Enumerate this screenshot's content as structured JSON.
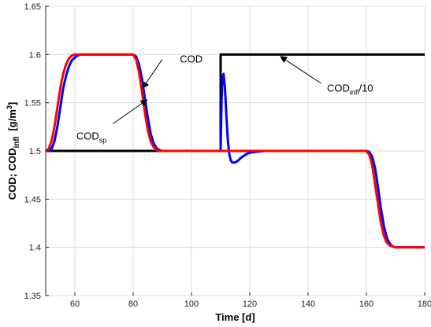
{
  "chart_data": {
    "type": "line",
    "xlabel": "Time [d]",
    "ylabel": {
      "main": "COD; COD",
      "sub": "infl",
      "unit_pre": "[g/m",
      "unit_sup": "3",
      "unit_post": "]"
    },
    "xlim": [
      50,
      180
    ],
    "ylim": [
      1.35,
      1.65
    ],
    "x_ticks": [
      60,
      80,
      100,
      120,
      140,
      160,
      180
    ],
    "y_ticks": [
      1.35,
      1.4,
      1.45,
      1.5,
      1.55,
      1.6,
      1.65
    ],
    "x_tick_labels": [
      "60",
      "80",
      "100",
      "120",
      "140",
      "160",
      "180"
    ],
    "y_tick_labels": [
      "1.35",
      "1.4",
      "1.45",
      "1.5",
      "1.55",
      "1.6",
      "1.65"
    ],
    "grid": true,
    "series": [
      {
        "color": "#0000ff",
        "x": [
          50,
          51,
          52,
          53,
          54,
          55,
          56,
          57,
          58,
          59,
          60,
          61,
          62,
          63,
          64,
          65,
          66,
          68,
          70,
          72,
          74,
          76,
          78,
          80,
          81,
          82,
          83,
          84,
          85,
          86,
          87,
          88,
          89,
          90,
          91,
          92,
          93,
          94,
          95,
          96,
          100,
          105,
          109.9,
          110,
          110.3,
          110.6,
          111,
          111.5,
          112,
          112.5,
          113,
          113.5,
          114,
          114.5,
          115,
          116,
          117,
          118,
          119,
          120,
          122,
          125,
          130,
          140,
          150,
          160,
          161,
          162,
          163,
          164,
          165,
          166,
          167,
          168,
          169,
          170,
          171,
          172,
          173,
          174,
          175,
          180
        ],
        "y": [
          1.5,
          1.5,
          1.502,
          1.51,
          1.525,
          1.545,
          1.565,
          1.578,
          1.588,
          1.594,
          1.597,
          1.599,
          1.6,
          1.6,
          1.6,
          1.6,
          1.6,
          1.6,
          1.6,
          1.6,
          1.6,
          1.6,
          1.6,
          1.6,
          1.598,
          1.59,
          1.575,
          1.555,
          1.535,
          1.518,
          1.508,
          1.503,
          1.501,
          1.5,
          1.5,
          1.5,
          1.5,
          1.5,
          1.5,
          1.5,
          1.5,
          1.5,
          1.5,
          1.5,
          1.55,
          1.575,
          1.58,
          1.565,
          1.535,
          1.51,
          1.496,
          1.49,
          1.488,
          1.488,
          1.488,
          1.49,
          1.493,
          1.495,
          1.497,
          1.498,
          1.499,
          1.5,
          1.5,
          1.5,
          1.5,
          1.5,
          1.499,
          1.494,
          1.482,
          1.462,
          1.44,
          1.422,
          1.41,
          1.404,
          1.401,
          1.4,
          1.4,
          1.4,
          1.4,
          1.4,
          1.4,
          1.4
        ]
      },
      {
        "color": "#ff0000",
        "x": [
          50,
          51,
          52,
          53,
          54,
          55,
          56,
          57,
          58,
          59,
          60,
          61,
          62,
          63,
          64,
          65,
          66,
          68,
          70,
          72,
          74,
          76,
          78,
          80,
          81,
          82,
          83,
          84,
          85,
          86,
          87,
          88,
          89,
          90,
          91,
          92,
          93,
          94,
          95,
          96,
          100,
          105,
          110,
          115,
          120,
          125,
          130,
          140,
          150,
          160,
          161,
          162,
          163,
          164,
          165,
          166,
          167,
          168,
          169,
          170,
          171,
          172,
          173,
          174,
          175,
          180
        ],
        "y": [
          1.5,
          1.502,
          1.51,
          1.525,
          1.545,
          1.565,
          1.58,
          1.59,
          1.596,
          1.599,
          1.6,
          1.6,
          1.6,
          1.6,
          1.6,
          1.6,
          1.6,
          1.6,
          1.6,
          1.6,
          1.6,
          1.6,
          1.6,
          1.6,
          1.595,
          1.582,
          1.562,
          1.54,
          1.522,
          1.51,
          1.504,
          1.501,
          1.5,
          1.5,
          1.5,
          1.5,
          1.5,
          1.5,
          1.5,
          1.5,
          1.5,
          1.5,
          1.5,
          1.5,
          1.5,
          1.5,
          1.5,
          1.5,
          1.5,
          1.5,
          1.496,
          1.485,
          1.465,
          1.445,
          1.425,
          1.412,
          1.405,
          1.402,
          1.401,
          1.4,
          1.4,
          1.4,
          1.4,
          1.4,
          1.4,
          1.4
        ]
      },
      {
        "color": "#000000",
        "x": [
          50,
          110,
          110,
          180
        ],
        "y": [
          1.5,
          1.5,
          1.6,
          1.6
        ]
      }
    ],
    "annotations": [
      {
        "id": "cod",
        "text": "COD",
        "sub": "",
        "suffix": "",
        "text_x": 96,
        "text_y": 1.595,
        "arrow_from": [
          90,
          1.595
        ],
        "arrow_to": [
          83.2,
          1.565
        ]
      },
      {
        "id": "cod-sp",
        "text": "COD",
        "sub": "sp",
        "suffix": "",
        "text_x": 60.5,
        "text_y": 1.515,
        "arrow_from": [
          73,
          1.528
        ],
        "arrow_to": [
          84.8,
          1.553
        ]
      },
      {
        "id": "cod-infl",
        "text": "COD",
        "sub": "infl",
        "suffix": "/10",
        "text_x": 146.5,
        "text_y": 1.565,
        "arrow_from": [
          144.5,
          1.57
        ],
        "arrow_to": [
          130.5,
          1.598
        ]
      }
    ]
  }
}
